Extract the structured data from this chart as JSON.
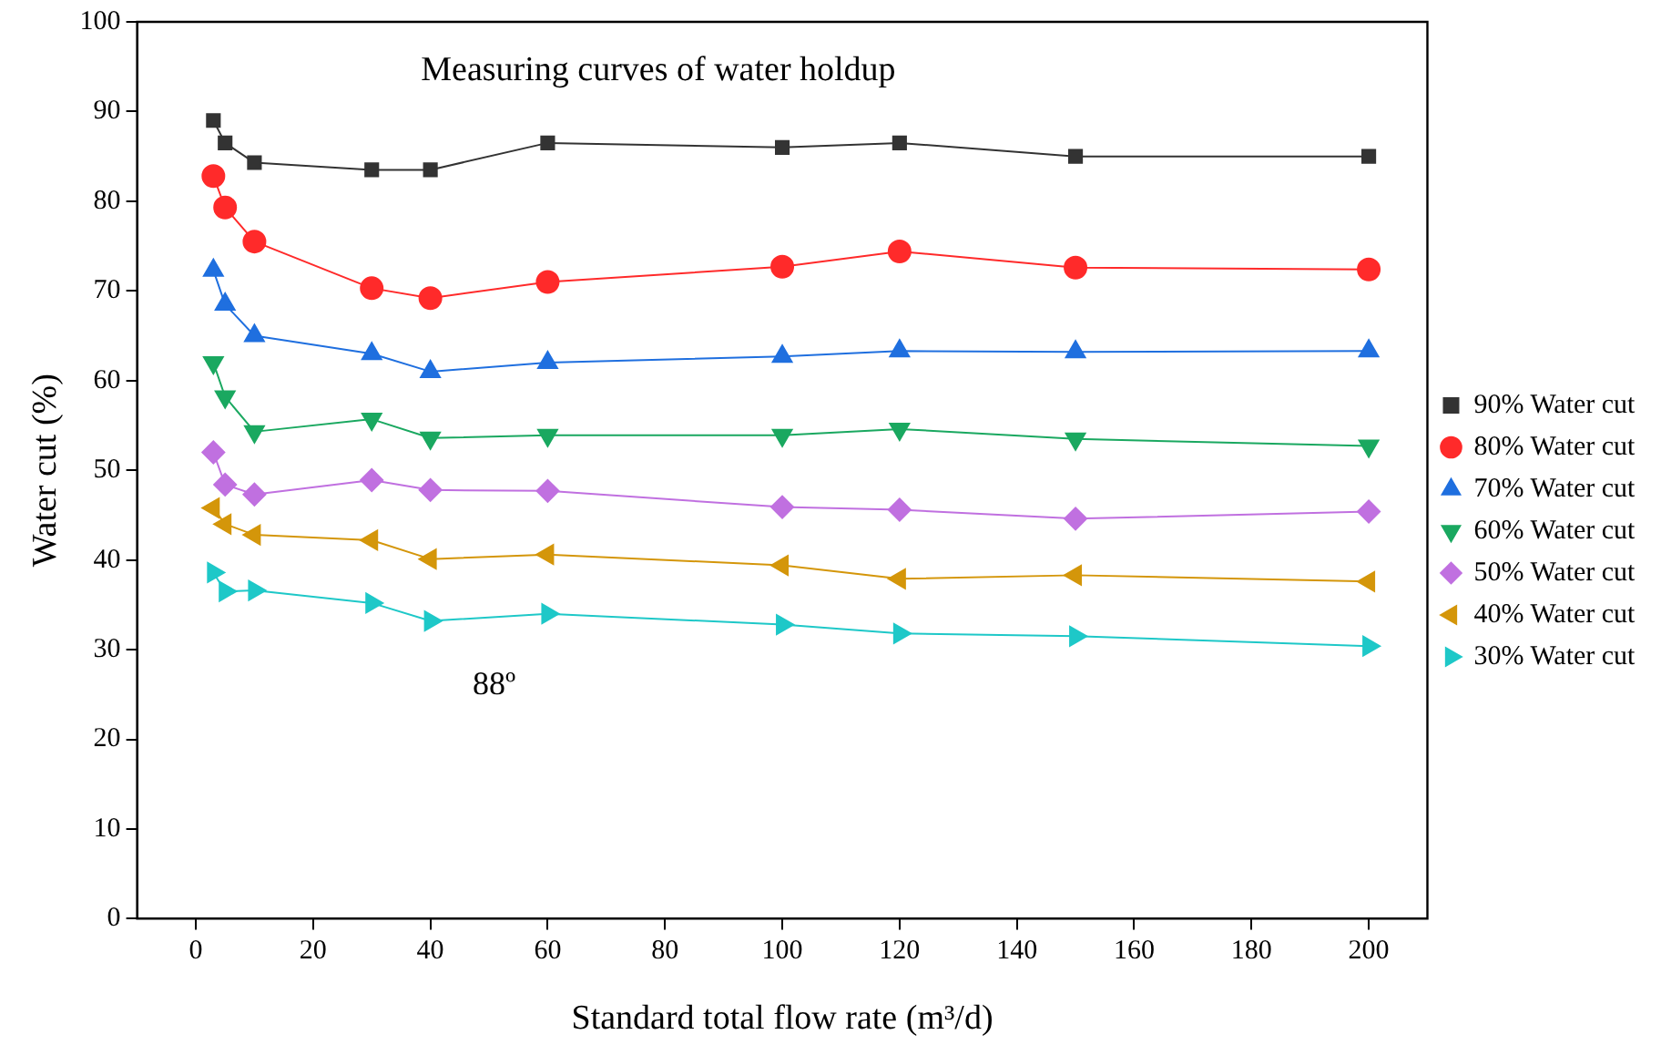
{
  "chart_data": {
    "type": "line",
    "title": "Measuring curves of water holdup",
    "xlabel": "Standard total flow rate (m³/d)",
    "ylabel": "Water cut (%)",
    "x": [
      3,
      5,
      10,
      30,
      40,
      60,
      100,
      120,
      150,
      200
    ],
    "series": [
      {
        "name": "90% Water cut",
        "color": "#333333",
        "marker": "square",
        "values": [
          89,
          86.5,
          84.3,
          83.5,
          83.5,
          86.5,
          86,
          86.5,
          85,
          85
        ]
      },
      {
        "name": "80% Water cut",
        "color": "#ff2a2a",
        "marker": "circle",
        "values": [
          82.8,
          79.3,
          75.5,
          70.3,
          69.2,
          71,
          72.7,
          74.4,
          72.6,
          72.4
        ]
      },
      {
        "name": "70% Water cut",
        "color": "#1f6fdf",
        "marker": "triangle",
        "values": [
          72.3,
          68.5,
          65,
          63,
          61,
          62,
          62.7,
          63.3,
          63.2,
          63.3
        ]
      },
      {
        "name": "60% Water cut",
        "color": "#1aa860",
        "marker": "triangle-down",
        "values": [
          62,
          58.2,
          54.3,
          55.7,
          53.6,
          53.9,
          53.9,
          54.6,
          53.5,
          52.7
        ]
      },
      {
        "name": "50% Water cut",
        "color": "#c070e0",
        "marker": "diamond",
        "values": [
          52,
          48.4,
          47.3,
          48.9,
          47.8,
          47.7,
          45.9,
          45.6,
          44.6,
          45.4
        ]
      },
      {
        "name": "40% Water cut",
        "color": "#d4960a",
        "marker": "triangle-left",
        "values": [
          45.8,
          44,
          42.8,
          42.2,
          40.1,
          40.6,
          39.4,
          37.9,
          38.3,
          37.6
        ]
      },
      {
        "name": "30% Water cut",
        "color": "#1ec8c8",
        "marker": "triangle-right",
        "values": [
          38.6,
          36.5,
          36.6,
          35.2,
          33.2,
          34,
          32.8,
          31.8,
          31.5,
          30.4
        ]
      }
    ],
    "annotations": [
      "88º"
    ],
    "xlim": [
      -10,
      210
    ],
    "xticks": [
      0,
      20,
      40,
      60,
      80,
      100,
      120,
      140,
      160,
      180,
      200
    ],
    "ylim": [
      0,
      100
    ],
    "yticks": [
      0,
      10,
      20,
      30,
      40,
      50,
      60,
      70,
      80,
      90,
      100
    ],
    "grid": false,
    "legend": "right",
    "line_style": "solid"
  }
}
